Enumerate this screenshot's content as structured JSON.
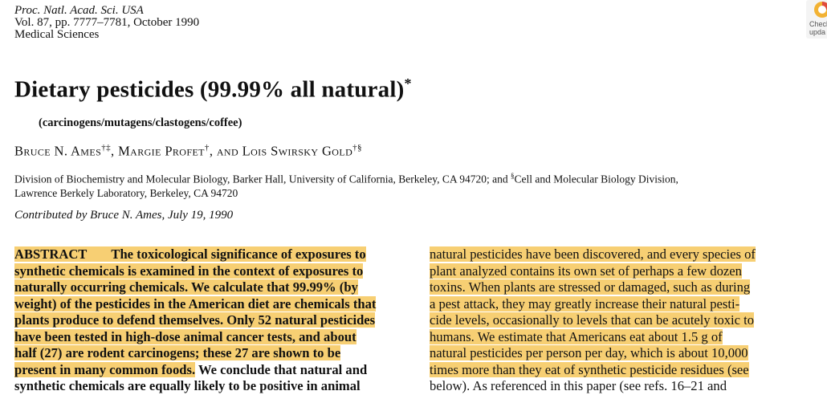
{
  "journal": {
    "name": "Proc. Natl. Acad. Sci. USA",
    "volume": "Vol. 87, pp. 7777–7781, October 1990",
    "section": "Medical Sciences"
  },
  "badge": {
    "line1": "Check",
    "line2": "upda"
  },
  "title": {
    "text": "Dietary pesticides (99.99% all natural)",
    "mark": "*"
  },
  "subtitle": "(carcinogens/mutagens/clastogens/coffee)",
  "authors": {
    "a1": "Bruce N. Ames",
    "a1_marks": "†‡",
    "sep1": ", ",
    "a2": "Margie Profet",
    "a2_marks": "†",
    "sep2": ", and ",
    "a3": "Lois Swirsky Gold",
    "a3_marks": "†§"
  },
  "affiliation": {
    "line1_a": "Division of Biochemistry and Molecular Biology, Barker Hall, University of California, Berkeley, CA 94720; and ",
    "mark": "§",
    "line1_b": "Cell and Molecular Biology Division,",
    "line2": "Lawrence Berkely Laboratory, Berkeley, CA 94720"
  },
  "contributed": "Contributed by Bruce N. Ames, July 19, 1990",
  "abstract_left": {
    "heading": "ABSTRACT",
    "line1": "The toxicological significance of exposures to",
    "line2": "synthetic chemicals is examined in the context of exposures to",
    "line3": "naturally occurring chemicals. We calculate that 99.99% (by",
    "line4": "weight) of the pesticides in the American diet are chemicals that",
    "line5": "plants produce to defend themselves. Only 52 natural pesticides",
    "line6": "have been tested in high-dose animal cancer tests, and about",
    "line7": "half (27) are rodent carcinogens; these 27 are shown to be",
    "line8_hl": "present in many common foods.",
    "line8_rest": " We conclude that natural and",
    "line9": "synthetic chemicals are equally likely to be positive in animal"
  },
  "abstract_right": {
    "line1": "natural pesticides have been discovered, and every species of",
    "line2": "plant analyzed contains its own set of perhaps a few dozen",
    "line3": "toxins. When plants are stressed or damaged, such as during",
    "line4": "a pest attack, they may greatly increase their natural pesti-",
    "line5": "cide levels, occasionally to levels that can be acutely toxic to",
    "line6": "humans. We estimate that Americans eat about 1.5 g of",
    "line7": "natural pesticides per person per day, which is about 10,000",
    "line8": "times more than they eat of synthetic pesticide residues (see",
    "line9": "below). As referenced in this paper (see refs. 16–21 and"
  },
  "colors": {
    "highlight": "#f7cf73"
  }
}
